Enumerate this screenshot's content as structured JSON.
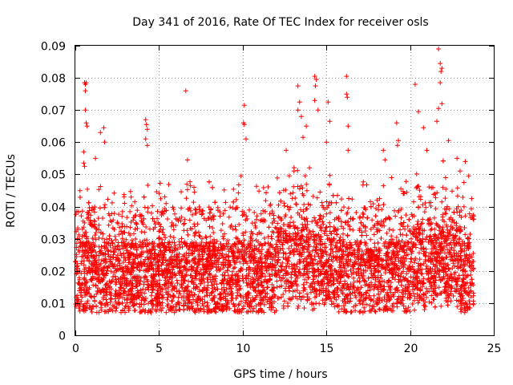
{
  "chart_data": {
    "type": "scatter",
    "title": "Day 341 of 2016, Rate Of TEC Index for receiver osls",
    "xlabel": "GPS time / hours",
    "ylabel": "ROTI / TECUs",
    "xlim": [
      0,
      25
    ],
    "ylim": [
      0,
      0.09
    ],
    "xticks": [
      0,
      5,
      10,
      15,
      20,
      25
    ],
    "yticks": [
      0,
      0.01,
      0.02,
      0.03,
      0.04,
      0.05,
      0.06,
      0.07,
      0.08,
      0.09
    ],
    "xtick_labels": [
      "0",
      "5",
      "10",
      "15",
      "20",
      "25"
    ],
    "ytick_labels": [
      "0",
      "0.01",
      "0.02",
      "0.03",
      "0.04",
      "0.05",
      "0.06",
      "0.07",
      "0.08",
      "0.09"
    ],
    "grid": true,
    "marker": "plus",
    "color": "#ff0000",
    "data_range_x": [
      0,
      23.8
    ],
    "series": [
      {
        "name": "ROTI",
        "description_values": "dense scatter of ROTI samples, bulk 0.006-0.03 TECU, sparse spikes up to 0.089",
        "points": [
          [
            0.55,
            0.0785
          ],
          [
            0.6,
            0.078
          ],
          [
            0.65,
            0.0785
          ],
          [
            0.6,
            0.076
          ],
          [
            0.6,
            0.07
          ],
          [
            0.65,
            0.066
          ],
          [
            0.7,
            0.065
          ],
          [
            0.5,
            0.057
          ],
          [
            0.5,
            0.0535
          ],
          [
            0.55,
            0.0525
          ],
          [
            1.2,
            0.055
          ],
          [
            1.5,
            0.063
          ],
          [
            1.7,
            0.0645
          ],
          [
            1.75,
            0.06
          ],
          [
            4.2,
            0.067
          ],
          [
            4.25,
            0.0655
          ],
          [
            4.3,
            0.064
          ],
          [
            4.2,
            0.061
          ],
          [
            4.3,
            0.059
          ],
          [
            6.6,
            0.076
          ],
          [
            6.7,
            0.0545
          ],
          [
            10.1,
            0.0715
          ],
          [
            10.05,
            0.066
          ],
          [
            10.1,
            0.0655
          ],
          [
            10.2,
            0.061
          ],
          [
            9.9,
            0.0495
          ],
          [
            12.6,
            0.0575
          ],
          [
            13.3,
            0.0775
          ],
          [
            13.3,
            0.07
          ],
          [
            13.4,
            0.0725
          ],
          [
            13.5,
            0.068
          ],
          [
            13.6,
            0.0615
          ],
          [
            13.8,
            0.065
          ],
          [
            14.3,
            0.0805
          ],
          [
            14.4,
            0.0795
          ],
          [
            14.35,
            0.0775
          ],
          [
            14.3,
            0.073
          ],
          [
            14.5,
            0.07
          ],
          [
            15.1,
            0.0725
          ],
          [
            15.2,
            0.0665
          ],
          [
            15.0,
            0.06
          ],
          [
            16.2,
            0.0805
          ],
          [
            16.2,
            0.075
          ],
          [
            16.25,
            0.074
          ],
          [
            16.3,
            0.065
          ],
          [
            16.3,
            0.0575
          ],
          [
            18.4,
            0.0575
          ],
          [
            18.5,
            0.0545
          ],
          [
            18.9,
            0.049
          ],
          [
            19.2,
            0.066
          ],
          [
            19.3,
            0.0605
          ],
          [
            19.25,
            0.059
          ],
          [
            20.3,
            0.078
          ],
          [
            20.5,
            0.0695
          ],
          [
            20.8,
            0.0645
          ],
          [
            21.0,
            0.0575
          ],
          [
            21.7,
            0.089
          ],
          [
            21.8,
            0.0845
          ],
          [
            21.9,
            0.083
          ],
          [
            21.85,
            0.082
          ],
          [
            21.8,
            0.0785
          ],
          [
            21.9,
            0.072
          ],
          [
            21.7,
            0.0705
          ],
          [
            21.6,
            0.0665
          ],
          [
            22.3,
            0.0605
          ],
          [
            22.8,
            0.055
          ],
          [
            23.3,
            0.054
          ],
          [
            23.5,
            0.0495
          ]
        ]
      }
    ]
  }
}
